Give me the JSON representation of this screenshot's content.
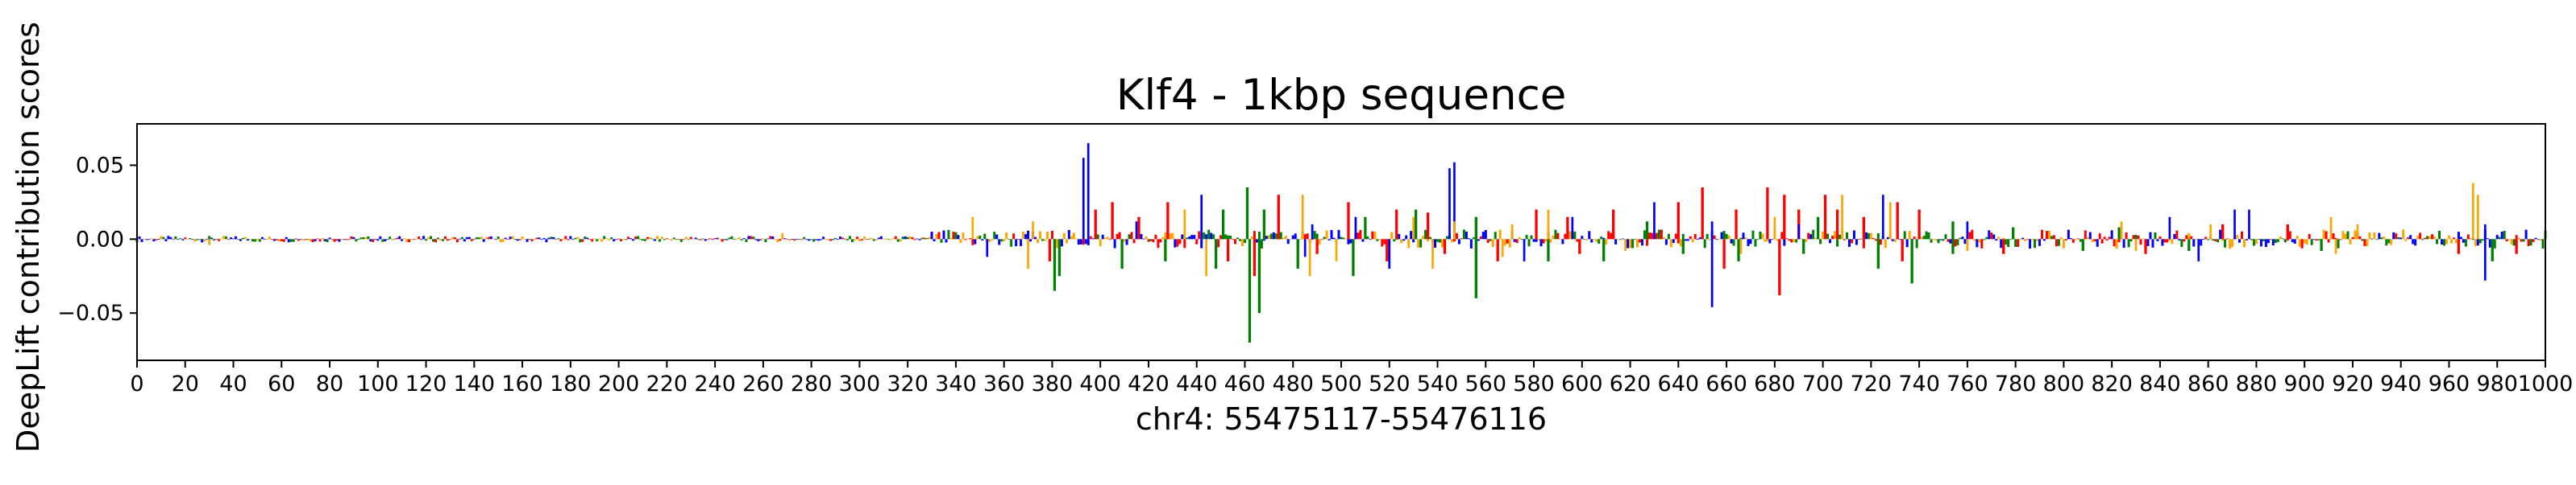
{
  "chart_data": {
    "type": "sequence-logo",
    "title": "Klf4 - 1kbp sequence",
    "xlabel": "chr4: 55475117-55476116",
    "ylabel": "DeepLift contribution scores",
    "xlim": [
      0,
      1000
    ],
    "ylim": [
      -0.082,
      0.078
    ],
    "x_ticks": [
      0,
      20,
      40,
      60,
      80,
      100,
      120,
      140,
      160,
      180,
      200,
      220,
      240,
      260,
      280,
      300,
      320,
      340,
      360,
      380,
      400,
      420,
      440,
      460,
      480,
      500,
      520,
      540,
      560,
      580,
      600,
      620,
      640,
      660,
      680,
      700,
      720,
      740,
      760,
      780,
      800,
      820,
      840,
      860,
      880,
      900,
      920,
      940,
      960,
      980,
      1000
    ],
    "x_tick_labels": [
      "0",
      "20",
      "40",
      "60",
      "80",
      "100",
      "120",
      "140",
      "160",
      "180",
      "200",
      "220",
      "240",
      "260",
      "280",
      "300",
      "320",
      "340",
      "360",
      "380",
      "400",
      "420",
      "440",
      "460",
      "480",
      "500",
      "520",
      "540",
      "560",
      "580",
      "600",
      "620",
      "640",
      "660",
      "680",
      "700",
      "720",
      "740",
      "760",
      "780",
      "800",
      "820",
      "840",
      "860",
      "880",
      "900",
      "920",
      "940",
      "960",
      "980",
      "1000"
    ],
    "y_ticks": [
      -0.05,
      0.0,
      0.05
    ],
    "y_tick_labels": [
      "−0.05",
      "0.00",
      "0.05"
    ],
    "grid": false,
    "base_colors": {
      "A": "#008000",
      "C": "#0000ff",
      "G": "#ffa500",
      "T": "#ff0000"
    },
    "series": [
      {
        "base": "T",
        "positions": [
          398,
          405,
          416,
          428,
          474,
          503,
          523,
          536,
          581,
          594,
          613,
          640,
          650,
          664,
          677,
          684,
          690,
          701,
          706,
          717,
          731,
          740,
          866,
          893
        ],
        "values": [
          0.02,
          0.025,
          0.015,
          0.025,
          0.03,
          0.025,
          0.02,
          0.018,
          0.02,
          0.015,
          0.02,
          0.025,
          0.035,
          0.02,
          0.035,
          0.03,
          0.02,
          0.03,
          0.02,
          0.015,
          0.025,
          0.02,
          0.01,
          0.01
        ]
      },
      {
        "base": "T",
        "positions": [
          379,
          453,
          464,
          490,
          519,
          543,
          565,
          599,
          659,
          682,
          733,
          775,
          834,
          964,
          988
        ],
        "values": [
          -0.015,
          -0.015,
          -0.025,
          -0.01,
          -0.015,
          -0.01,
          -0.015,
          -0.01,
          -0.02,
          -0.038,
          -0.015,
          -0.01,
          -0.01,
          -0.01,
          -0.01
        ]
      },
      {
        "base": "A",
        "positions": [
          381,
          383,
          409,
          427,
          448,
          462,
          466,
          482,
          505,
          556,
          586,
          609,
          642,
          665,
          692,
          723,
          737,
          754,
          808,
          852,
          907,
          978
        ],
        "values": [
          -0.035,
          -0.025,
          -0.02,
          -0.015,
          -0.02,
          -0.07,
          -0.05,
          -0.02,
          -0.025,
          -0.04,
          -0.015,
          -0.015,
          -0.01,
          -0.015,
          -0.01,
          -0.02,
          -0.03,
          -0.01,
          -0.008,
          -0.008,
          -0.008,
          -0.015
        ]
      },
      {
        "base": "A",
        "positions": [
          451,
          461,
          468,
          510,
          531,
          556,
          627,
          698,
          754,
          779,
          823
        ],
        "values": [
          0.02,
          0.035,
          0.02,
          0.015,
          0.02,
          0.015,
          0.012,
          0.015,
          0.012,
          0.008,
          0.008
        ]
      },
      {
        "base": "C",
        "positions": [
          393,
          395,
          415,
          442,
          488,
          506,
          545,
          547,
          596,
          630,
          654,
          690,
          725,
          760,
          844,
          871,
          877,
          975
        ],
        "values": [
          0.055,
          0.065,
          0.012,
          0.03,
          0.01,
          0.015,
          0.048,
          0.052,
          0.015,
          0.025,
          0.012,
          0.01,
          0.03,
          0.012,
          0.015,
          0.02,
          0.02,
          0.01
        ]
      },
      {
        "base": "C",
        "positions": [
          353,
          485,
          520,
          576,
          654,
          856,
          975
        ],
        "values": [
          -0.012,
          -0.012,
          -0.02,
          -0.015,
          -0.046,
          -0.015,
          -0.028
        ]
      },
      {
        "base": "G",
        "positions": [
          30,
          268,
          347,
          372,
          435,
          484,
          530,
          547,
          571,
          586,
          680,
          708,
          728,
          824,
          861,
          911,
          922,
          970,
          972
        ],
        "values": [
          -0.004,
          0.004,
          0.015,
          0.012,
          0.02,
          0.03,
          0.015,
          0.012,
          0.01,
          0.02,
          0.015,
          0.03,
          0.025,
          0.012,
          0.01,
          0.015,
          0.01,
          0.038,
          0.03
        ]
      },
      {
        "base": "G",
        "positions": [
          370,
          444,
          487,
          498,
          538,
          567,
          618,
          666,
          760,
          830,
          913
        ],
        "values": [
          -0.02,
          -0.025,
          -0.025,
          -0.015,
          -0.02,
          -0.012,
          -0.008,
          -0.01,
          -0.008,
          -0.008,
          -0.01
        ]
      }
    ]
  }
}
